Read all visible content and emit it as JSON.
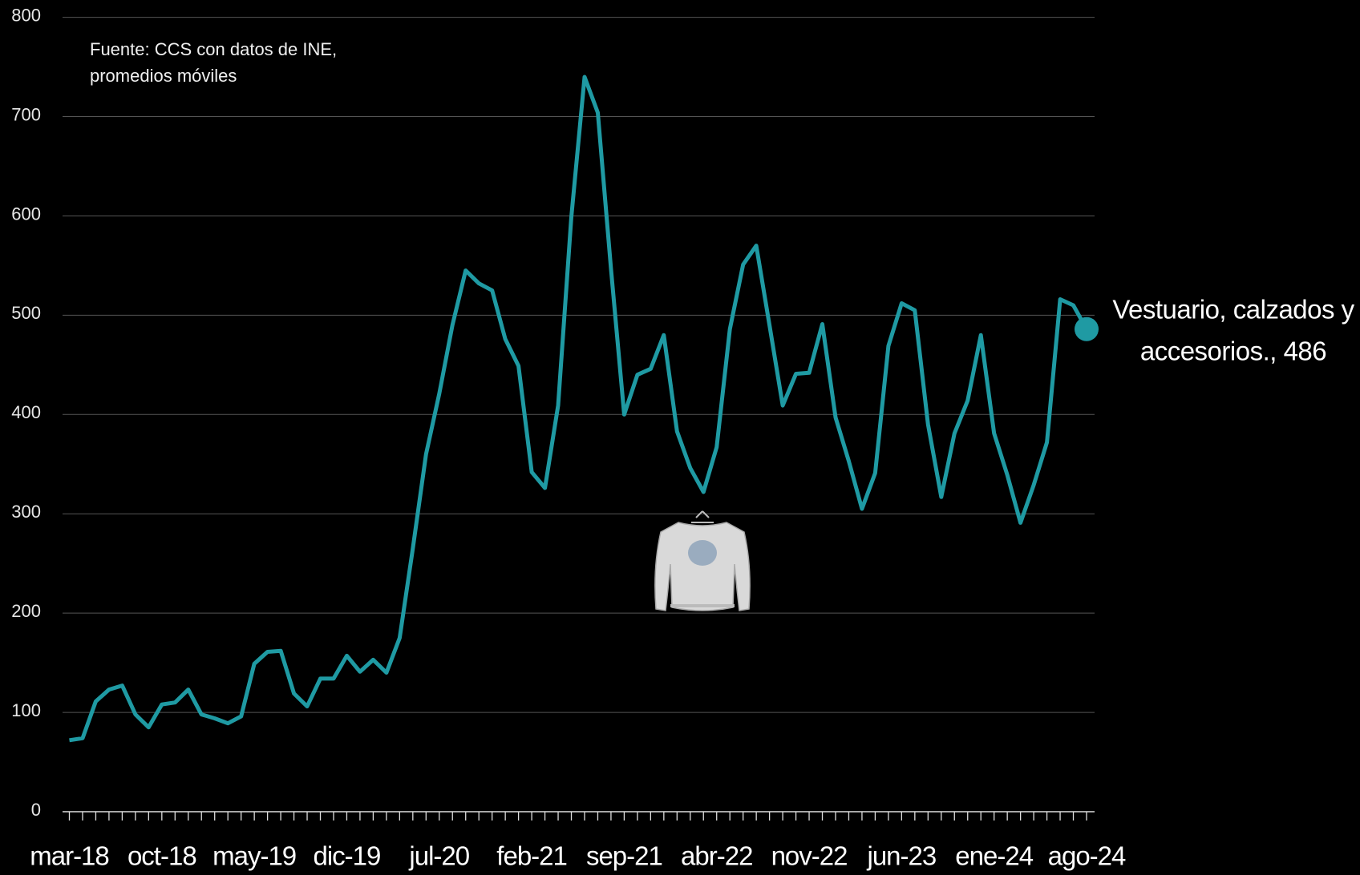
{
  "chart_data": {
    "type": "line",
    "source_note": [
      "Fuente: CCS con datos de INE,",
      "promedios móviles"
    ],
    "end_label": [
      "Vestuario, calzados y",
      "accesorios., 486"
    ],
    "categories": [
      "mar-18",
      null,
      null,
      null,
      null,
      null,
      null,
      "oct-18",
      null,
      null,
      null,
      null,
      null,
      null,
      "may-19",
      null,
      null,
      null,
      null,
      null,
      null,
      "dic-19",
      null,
      null,
      null,
      null,
      null,
      null,
      "jul-20",
      null,
      null,
      null,
      null,
      null,
      null,
      "feb-21",
      null,
      null,
      null,
      null,
      null,
      null,
      "sep-21",
      null,
      null,
      null,
      null,
      null,
      null,
      "abr-22",
      null,
      null,
      null,
      null,
      null,
      null,
      "nov-22",
      null,
      null,
      null,
      null,
      null,
      null,
      "jun-23",
      null,
      null,
      null,
      null,
      null,
      null,
      "ene-24",
      null,
      null,
      null,
      null,
      null,
      null,
      "ago-24"
    ],
    "series": [
      {
        "name": "Vestuario, calzados y accesorios.",
        "color": "#1f9aa3",
        "values": [
          72,
          74,
          111,
          123,
          127,
          98,
          85,
          108,
          110,
          123,
          98,
          94,
          89,
          96,
          149,
          161,
          162,
          119,
          106,
          134,
          134,
          157,
          141,
          153,
          140,
          175,
          265,
          360,
          421,
          490,
          545,
          532,
          525,
          476,
          449,
          342,
          326,
          409,
          599,
          740,
          704,
          547,
          400,
          440,
          446,
          480,
          383,
          346,
          322,
          367,
          486,
          551,
          570,
          490,
          409,
          441,
          442,
          491,
          397,
          353,
          305,
          341,
          469,
          512,
          505,
          390,
          317,
          381,
          414,
          480,
          381,
          339,
          291,
          329,
          372,
          516,
          510,
          486
        ]
      }
    ],
    "ylim": [
      0,
      800
    ],
    "yticks": [
      0,
      100,
      200,
      300,
      400,
      500,
      600,
      700,
      800
    ],
    "grid": true
  }
}
